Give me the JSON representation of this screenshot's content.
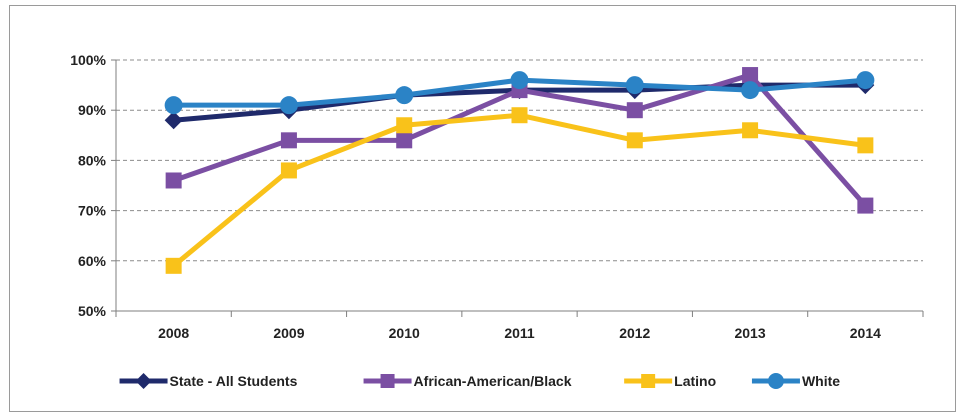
{
  "chart_data": {
    "type": "line",
    "title": "",
    "xlabel": "",
    "ylabel": "",
    "categories": [
      "2008",
      "2009",
      "2010",
      "2011",
      "2012",
      "2013",
      "2014"
    ],
    "ylim": [
      50,
      100
    ],
    "yticks": [
      50,
      60,
      70,
      80,
      90,
      100
    ],
    "ytick_labels": [
      "50%",
      "60%",
      "70%",
      "80%",
      "90%",
      "100%"
    ],
    "grid": "horizontal dashed",
    "legend_position": "bottom",
    "series": [
      {
        "name": "State - All Students",
        "color": "#1f2a6b",
        "marker": "diamond",
        "values": [
          88,
          90,
          93,
          94,
          94,
          95,
          95
        ]
      },
      {
        "name": "African-American/Black",
        "color": "#7b4fa3",
        "marker": "square",
        "values": [
          76,
          84,
          84,
          94,
          90,
          97,
          71
        ]
      },
      {
        "name": "Latino",
        "color": "#f9c21a",
        "marker": "square",
        "values": [
          59,
          78,
          87,
          89,
          84,
          86,
          83
        ]
      },
      {
        "name": "White",
        "color": "#2b83c6",
        "marker": "circle",
        "values": [
          91,
          91,
          93,
          96,
          95,
          94,
          96
        ]
      }
    ]
  }
}
